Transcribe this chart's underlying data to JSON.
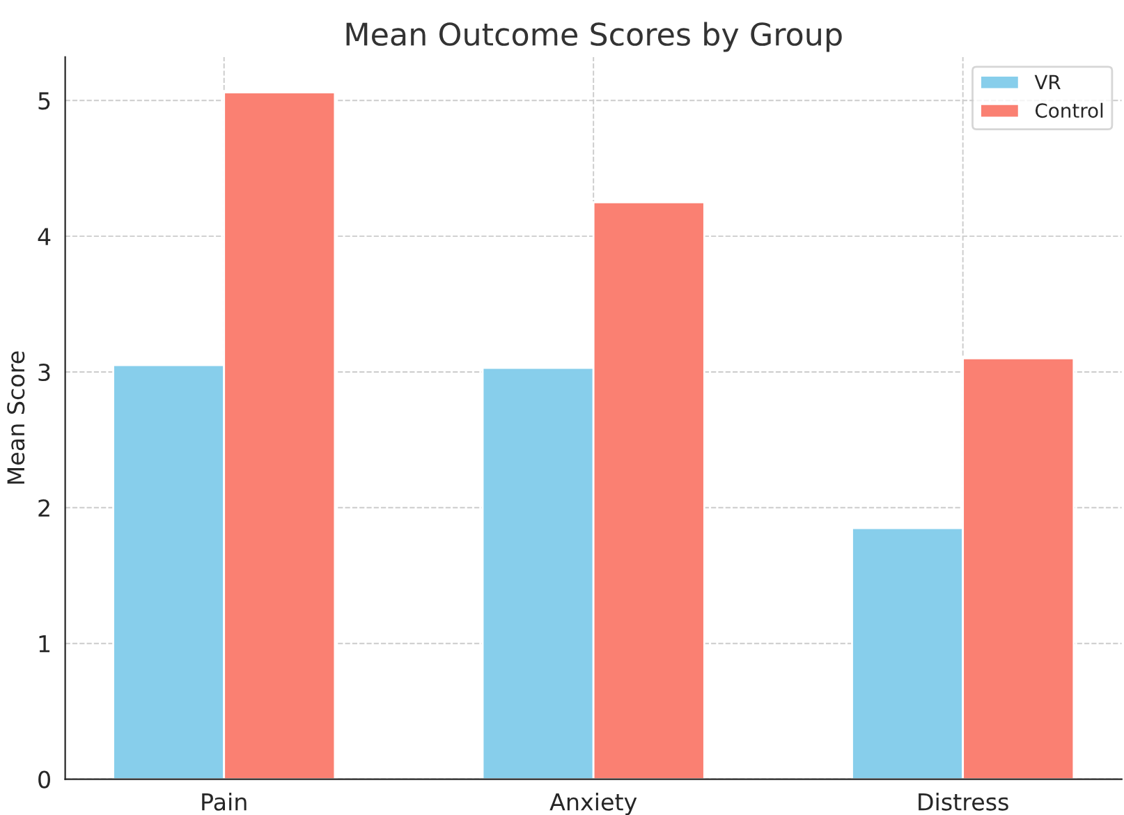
{
  "chart_data": {
    "type": "bar",
    "title": "Mean Outcome Scores by Group",
    "ylabel": "Mean Score",
    "categories": [
      "Pain",
      "Anxiety",
      "Distress"
    ],
    "series": [
      {
        "name": "VR",
        "color": "#87ceeb",
        "values": [
          3.05,
          3.03,
          1.85
        ]
      },
      {
        "name": "Control",
        "color": "#fa8072",
        "values": [
          5.06,
          4.25,
          3.1
        ]
      }
    ],
    "ylim": [
      0,
      5.32
    ],
    "yticks": [
      0,
      1,
      2,
      3,
      4,
      5
    ],
    "grid": true,
    "legend": "top right"
  }
}
